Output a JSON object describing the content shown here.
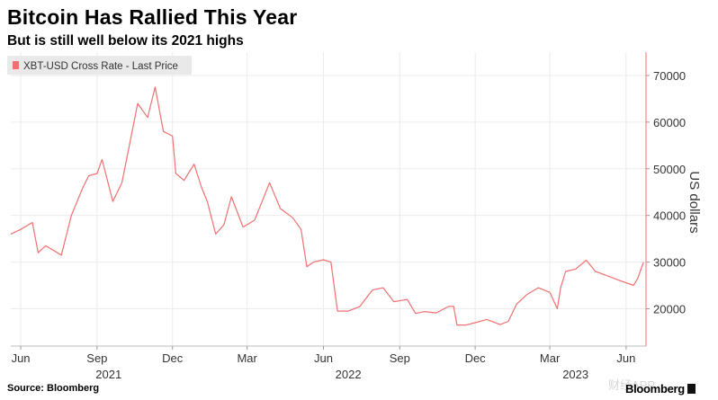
{
  "header": {
    "title": "Bitcoin Has Rallied This Year",
    "subtitle": "But is still well below its 2021 highs"
  },
  "footer": {
    "source": "Source: Bloomberg",
    "brand": "Bloomberg",
    "watermark": "财经APP"
  },
  "chart_data": {
    "type": "line",
    "legend": "XBT-USD Cross Rate - Last Price",
    "legend_position": "top-left",
    "ylabel": "US dollars",
    "ylim": [
      12000,
      75000
    ],
    "yticks": [
      20000,
      30000,
      40000,
      50000,
      60000,
      70000
    ],
    "ytick_labels": [
      "20000",
      "30000",
      "40000",
      "50000",
      "60000",
      "70000"
    ],
    "xlim": [
      "2021-05-20",
      "2023-06-25"
    ],
    "xticks": [
      {
        "date": "2021-06-01",
        "label": "Jun"
      },
      {
        "date": "2021-09-01",
        "label": "Sep"
      },
      {
        "date": "2021-12-01",
        "label": "Dec"
      },
      {
        "date": "2022-03-01",
        "label": "Mar"
      },
      {
        "date": "2022-06-01",
        "label": "Jun"
      },
      {
        "date": "2022-09-01",
        "label": "Sep"
      },
      {
        "date": "2022-12-01",
        "label": "Dec"
      },
      {
        "date": "2023-03-01",
        "label": "Mar"
      },
      {
        "date": "2023-06-01",
        "label": "Jun"
      }
    ],
    "year_labels": [
      {
        "date": "2021-09-15",
        "label": "2021"
      },
      {
        "date": "2022-07-01",
        "label": "2022"
      },
      {
        "date": "2023-04-01",
        "label": "2023"
      }
    ],
    "grid": true,
    "line_color": "#f07070",
    "series": [
      {
        "x": [
          "2021-05-20",
          "2021-06-01",
          "2021-06-15",
          "2021-06-22",
          "2021-07-01",
          "2021-07-20",
          "2021-08-01",
          "2021-08-15",
          "2021-08-22",
          "2021-09-01",
          "2021-09-07",
          "2021-09-20",
          "2021-10-01",
          "2021-10-10",
          "2021-10-20",
          "2021-11-01",
          "2021-11-10",
          "2021-11-20",
          "2021-12-01",
          "2021-12-05",
          "2021-12-15",
          "2021-12-27",
          "2022-01-05",
          "2022-01-12",
          "2022-01-22",
          "2022-02-01",
          "2022-02-10",
          "2022-02-24",
          "2022-03-10",
          "2022-03-28",
          "2022-04-10",
          "2022-04-25",
          "2022-05-05",
          "2022-05-12",
          "2022-05-20",
          "2022-06-01",
          "2022-06-10",
          "2022-06-18",
          "2022-07-01",
          "2022-07-15",
          "2022-07-30",
          "2022-08-12",
          "2022-08-25",
          "2022-09-10",
          "2022-09-20",
          "2022-10-01",
          "2022-10-15",
          "2022-10-30",
          "2022-11-05",
          "2022-11-09",
          "2022-11-20",
          "2022-12-01",
          "2022-12-15",
          "2022-12-31",
          "2023-01-10",
          "2023-01-20",
          "2023-02-01",
          "2023-02-15",
          "2023-03-01",
          "2023-03-10",
          "2023-03-14",
          "2023-03-20",
          "2023-04-01",
          "2023-04-14",
          "2023-04-25",
          "2023-05-10",
          "2023-05-25",
          "2023-06-10",
          "2023-06-15",
          "2023-06-22"
        ],
        "y": [
          36000,
          37000,
          38500,
          32000,
          33500,
          31500,
          40000,
          46000,
          48500,
          49000,
          52000,
          43000,
          47000,
          55000,
          64000,
          61000,
          67500,
          58000,
          57000,
          49000,
          47500,
          51000,
          46000,
          43000,
          36000,
          38000,
          44000,
          37500,
          39000,
          47000,
          41500,
          39500,
          37000,
          29000,
          30000,
          30500,
          30000,
          19500,
          19500,
          20500,
          24000,
          24500,
          21500,
          22000,
          19000,
          19400,
          19100,
          20500,
          20500,
          16500,
          16500,
          17000,
          17700,
          16600,
          17300,
          21000,
          23000,
          24500,
          23500,
          20000,
          24500,
          28000,
          28500,
          30400,
          28000,
          27000,
          26000,
          25000,
          26500,
          30000
        ]
      }
    ]
  }
}
